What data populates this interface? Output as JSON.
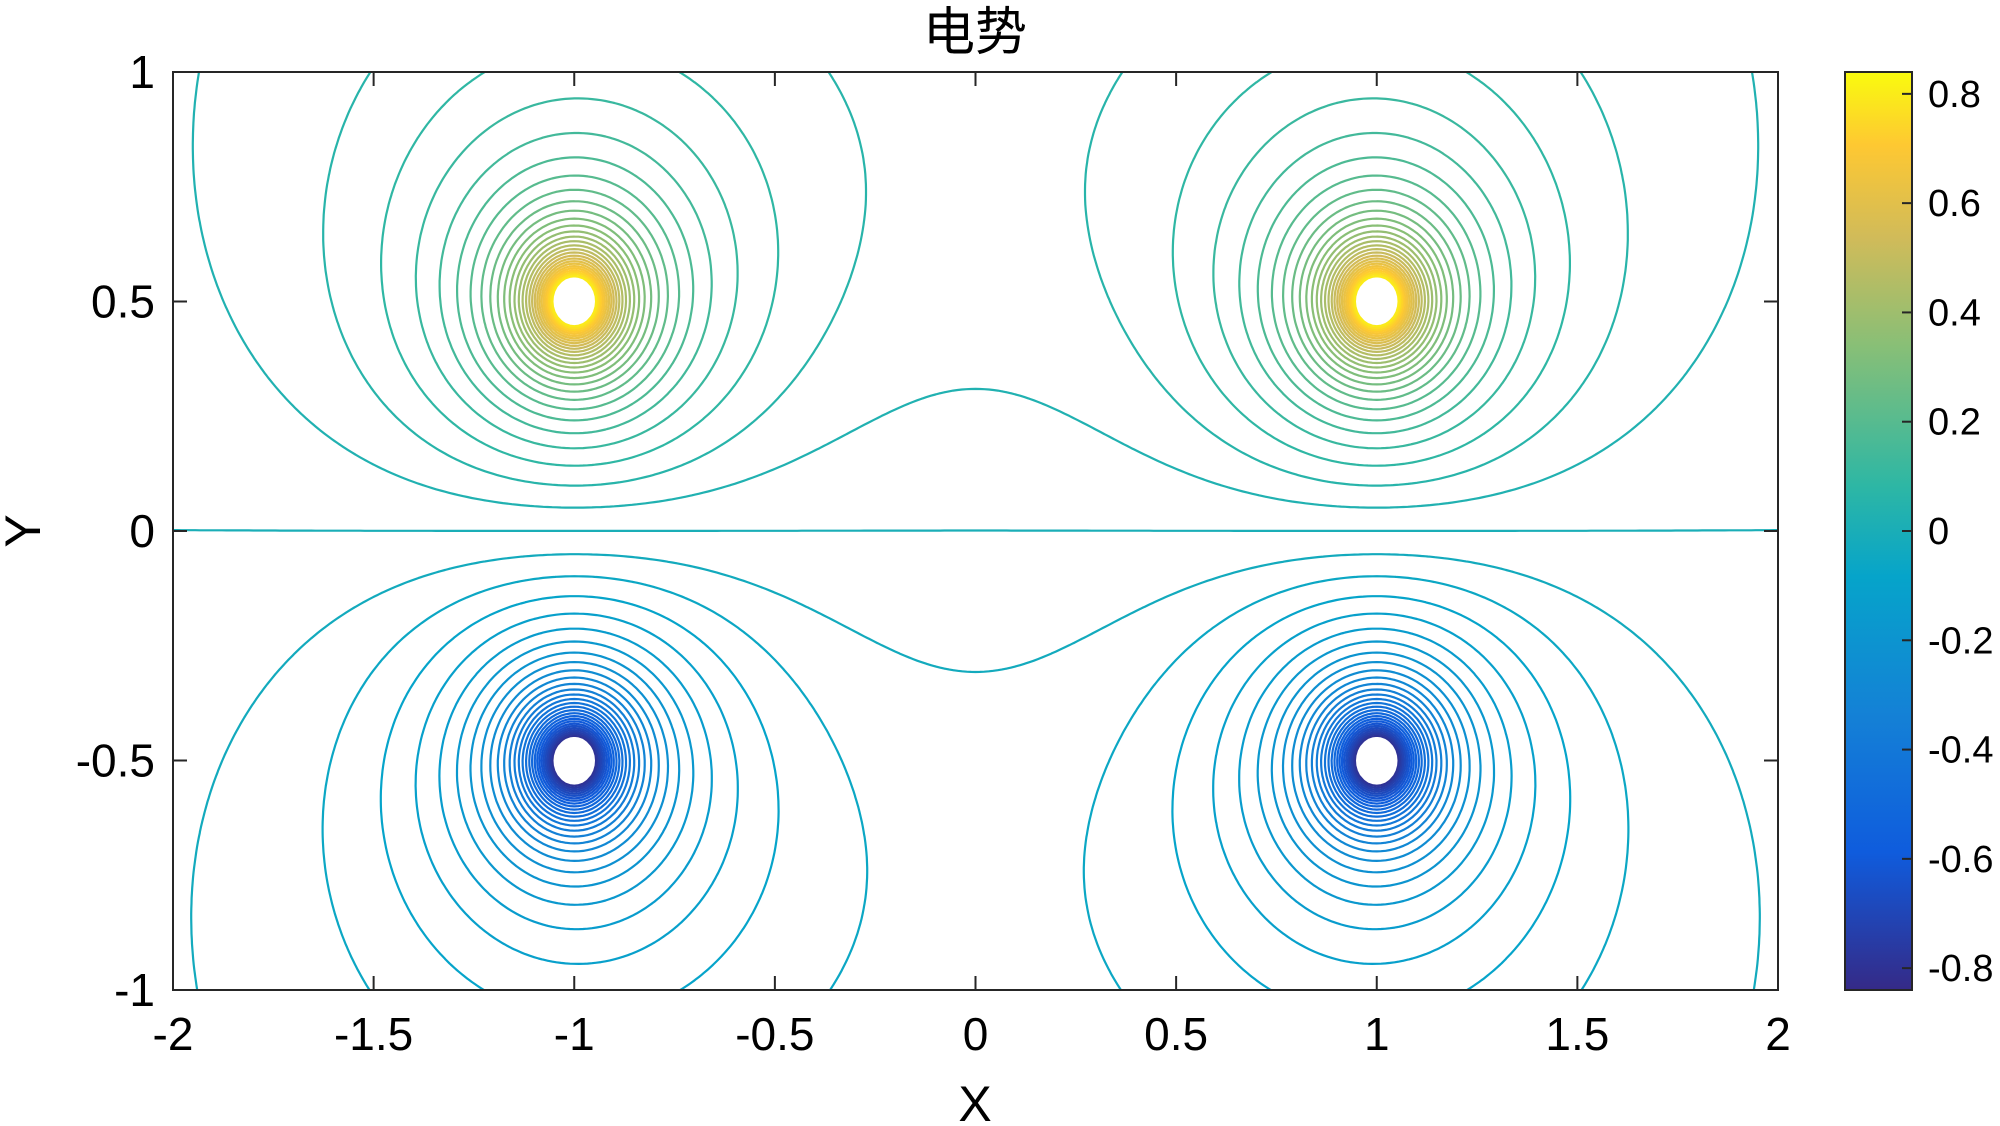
{
  "chart_data": {
    "type": "contour",
    "title": "电势",
    "xlabel": "X",
    "ylabel": "Y",
    "xlim": [
      -2,
      2
    ],
    "ylim": [
      -1,
      1
    ],
    "x_ticks": [
      -2,
      -1.5,
      -1,
      -0.5,
      0,
      0.5,
      1,
      1.5,
      2
    ],
    "y_ticks": [
      -1,
      -0.5,
      0,
      0.5,
      1
    ],
    "x_tick_labels": [
      "-2",
      "-1.5",
      "-1",
      "-0.5",
      "0",
      "0.5",
      "1",
      "1.5",
      "2"
    ],
    "y_tick_labels": [
      "-1",
      "-0.5",
      "0",
      "0.5",
      "1"
    ],
    "charges": [
      {
        "x": -1,
        "y": 0.5,
        "sign": 1
      },
      {
        "x": 1,
        "y": 0.5,
        "sign": 1
      },
      {
        "x": -1,
        "y": -0.5,
        "sign": -1
      },
      {
        "x": 1,
        "y": -0.5,
        "sign": -1
      }
    ],
    "colorbar": {
      "range": [
        -0.84,
        0.84
      ],
      "ticks": [
        0.8,
        0.6,
        0.4,
        0.2,
        0,
        -0.2,
        -0.4,
        -0.6,
        -0.8
      ],
      "tick_labels": [
        "0.8",
        "0.6",
        "0.4",
        "0.2",
        "0",
        "-0.2",
        "-0.4",
        "-0.6",
        "-0.8"
      ],
      "colormap": "parula",
      "placement": "right"
    },
    "grid": false,
    "line_color_zero": "#3cc3b5"
  }
}
